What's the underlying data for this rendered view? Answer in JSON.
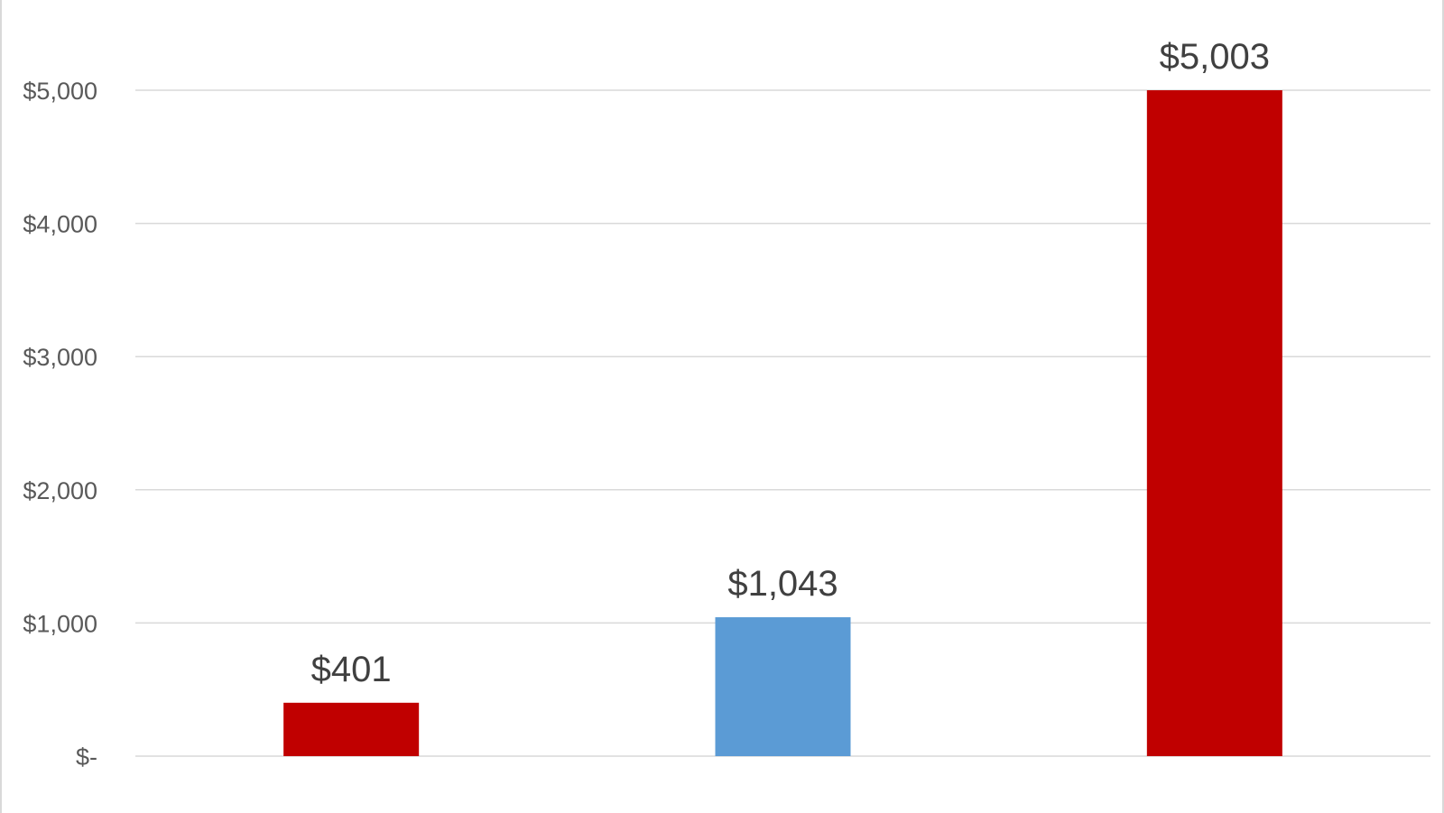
{
  "chart_data": {
    "type": "bar",
    "categories": [
      "",
      "",
      ""
    ],
    "values": [
      401,
      1043,
      5003
    ],
    "data_labels": [
      "$401",
      "$1,043",
      "$5,003"
    ],
    "colors": [
      "#c00000",
      "#5b9bd5",
      "#c00000"
    ],
    "ylim": [
      0,
      5000
    ],
    "yticks": [
      0,
      1000,
      2000,
      3000,
      4000,
      5000
    ],
    "ytick_labels": [
      "$-",
      "$1,000",
      "$2,000",
      "$3,000",
      "$4,000",
      "$5,000"
    ],
    "grid": true,
    "title": "",
    "xlabel": "",
    "ylabel": ""
  }
}
